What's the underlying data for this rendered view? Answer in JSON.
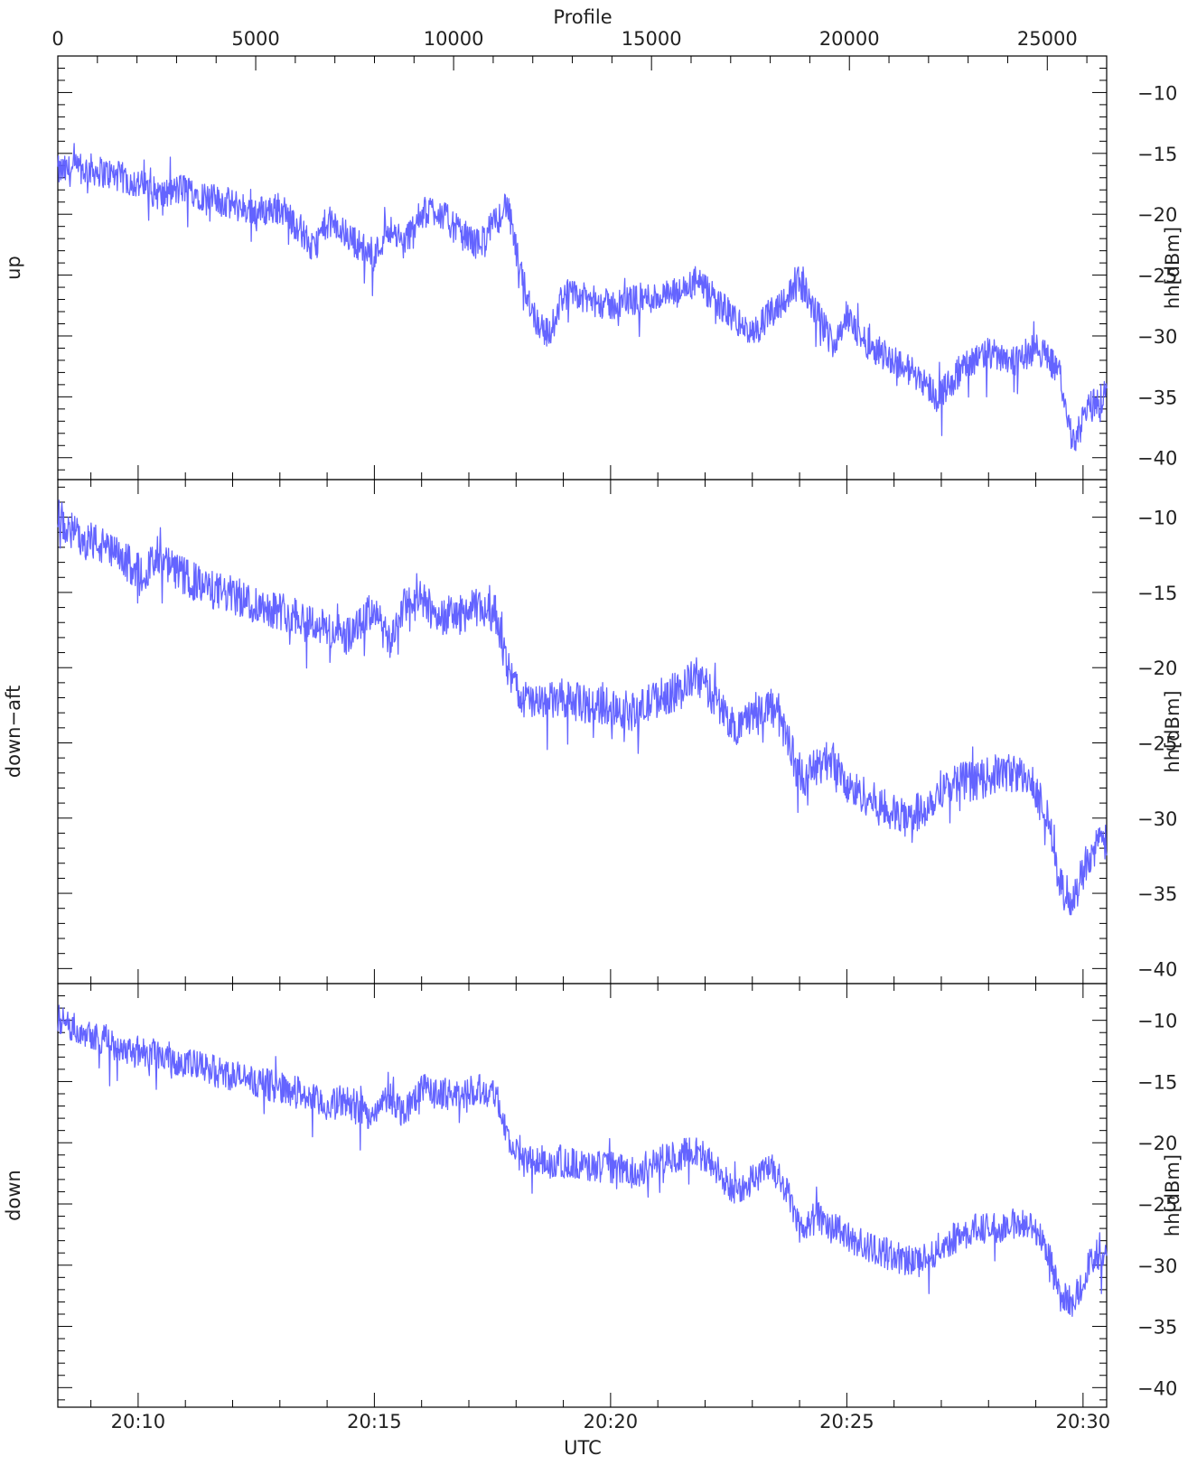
{
  "figure": {
    "top_axis_title": "Profile",
    "bottom_axis_title": "UTC",
    "top_ticks": [
      "0",
      "5000",
      "10000",
      "15000",
      "20000",
      "25000"
    ],
    "top_tick_values": [
      0,
      5000,
      10000,
      15000,
      20000,
      25000
    ],
    "bottom_ticks": [
      "20:10",
      "20:15",
      "20:20",
      "20:25",
      "20:30"
    ],
    "bottom_tick_minutes": [
      10,
      15,
      20,
      25,
      30
    ],
    "line_color": "#5c5cff",
    "frame_color": "#000000"
  },
  "chart_data": [
    {
      "type": "line",
      "panel_label": "up",
      "ylabel": "hh[dBm]",
      "yticks": [
        "−10",
        "−15",
        "−20",
        "−25",
        "−30",
        "−35",
        "−40"
      ],
      "ytick_values": [
        -10,
        -15,
        -20,
        -25,
        -30,
        -35,
        -40
      ],
      "ylim": [
        -41.8,
        -7.0
      ],
      "xlim": [
        8.3,
        30.5
      ],
      "x_unit": "minutes past 20:00 UTC",
      "x": [
        8.3,
        9.0,
        9.5,
        10.0,
        10.5,
        11.0,
        11.5,
        12.0,
        12.5,
        13.0,
        13.4,
        13.7,
        14.0,
        14.5,
        15.0,
        15.3,
        15.6,
        16.0,
        16.3,
        16.8,
        17.2,
        17.6,
        17.8,
        18.1,
        18.4,
        18.7,
        19.0,
        19.5,
        20.0,
        20.5,
        21.0,
        21.5,
        21.8,
        22.2,
        22.6,
        23.0,
        23.4,
        23.8,
        24.0,
        24.4,
        24.7,
        25.0,
        25.4,
        25.8,
        26.2,
        26.6,
        26.9,
        27.4,
        27.8,
        28.2,
        28.6,
        29.0,
        29.2,
        29.5,
        29.8,
        30.1,
        30.5
      ],
      "y": [
        -16.5,
        -16.3,
        -16.8,
        -17.5,
        -18.5,
        -17.8,
        -18.7,
        -19.2,
        -19.8,
        -19.5,
        -21.0,
        -23.0,
        -20.5,
        -22.0,
        -23.5,
        -21.0,
        -22.5,
        -20.0,
        -19.5,
        -21.5,
        -22.5,
        -20.5,
        -19.0,
        -25.0,
        -28.5,
        -30.0,
        -26.5,
        -27.0,
        -27.5,
        -27.0,
        -26.8,
        -26.5,
        -25.5,
        -27.0,
        -28.5,
        -30.0,
        -28.0,
        -26.5,
        -25.5,
        -28.5,
        -30.5,
        -28.5,
        -30.5,
        -31.5,
        -32.5,
        -33.5,
        -35.0,
        -33.0,
        -31.5,
        -31.5,
        -32.0,
        -31.0,
        -31.5,
        -33.0,
        -39.0,
        -36.0,
        -34.8
      ],
      "grid": false
    },
    {
      "type": "line",
      "panel_label": "down−aft",
      "ylabel": "hh[dBm]",
      "yticks": [
        "−10",
        "−15",
        "−20",
        "−25",
        "−30",
        "−35",
        "−40"
      ],
      "ytick_values": [
        -10,
        -15,
        -20,
        -25,
        -30,
        -35,
        -40
      ],
      "ylim": [
        -41.0,
        -7.5
      ],
      "xlim": [
        8.3,
        30.5
      ],
      "x_unit": "minutes past 20:00 UTC",
      "x": [
        8.3,
        8.6,
        9.0,
        9.5,
        10.0,
        10.5,
        11.0,
        11.5,
        12.0,
        12.5,
        13.0,
        13.4,
        13.7,
        14.0,
        14.5,
        15.0,
        15.3,
        15.6,
        16.0,
        16.3,
        16.8,
        17.2,
        17.6,
        17.8,
        18.1,
        18.5,
        19.0,
        19.5,
        20.0,
        20.5,
        21.0,
        21.5,
        21.8,
        22.2,
        22.6,
        23.0,
        23.4,
        23.8,
        24.0,
        24.4,
        24.7,
        25.0,
        25.4,
        25.8,
        26.2,
        26.6,
        27.0,
        27.4,
        27.8,
        28.2,
        28.6,
        29.0,
        29.3,
        29.5,
        29.8,
        30.1,
        30.5
      ],
      "y": [
        -10.0,
        -11.0,
        -11.5,
        -12.5,
        -13.5,
        -13.0,
        -14.0,
        -14.8,
        -15.2,
        -15.8,
        -16.2,
        -16.5,
        -17.0,
        -17.5,
        -18.0,
        -16.0,
        -18.5,
        -16.0,
        -15.5,
        -16.5,
        -16.5,
        -16.0,
        -16.5,
        -20.0,
        -22.0,
        -22.5,
        -22.0,
        -22.5,
        -22.5,
        -23.0,
        -22.0,
        -21.5,
        -20.5,
        -22.0,
        -24.0,
        -23.0,
        -22.5,
        -25.0,
        -27.5,
        -26.5,
        -26.0,
        -28.0,
        -28.5,
        -29.5,
        -30.0,
        -29.5,
        -28.0,
        -27.5,
        -27.5,
        -27.0,
        -27.0,
        -28.0,
        -30.5,
        -34.5,
        -35.5,
        -32.5,
        -31.5
      ],
      "grid": false
    },
    {
      "type": "line",
      "panel_label": "down",
      "ylabel": "hh[dBm]",
      "yticks": [
        "−10",
        "−15",
        "−20",
        "−25",
        "−30",
        "−35",
        "−40"
      ],
      "ytick_values": [
        -10,
        -15,
        -20,
        -25,
        -30,
        -35,
        -40
      ],
      "ylim": [
        -41.6,
        -7.0
      ],
      "xlim": [
        8.3,
        30.5
      ],
      "x_unit": "minutes past 20:00 UTC",
      "x": [
        8.3,
        8.6,
        9.0,
        9.5,
        10.0,
        10.5,
        11.0,
        11.5,
        12.0,
        12.5,
        13.0,
        13.4,
        13.7,
        14.0,
        14.5,
        15.0,
        15.3,
        15.6,
        16.0,
        16.3,
        16.8,
        17.2,
        17.6,
        17.8,
        18.1,
        18.5,
        19.0,
        19.5,
        20.0,
        20.5,
        21.0,
        21.5,
        21.8,
        22.2,
        22.6,
        23.0,
        23.4,
        23.8,
        24.0,
        24.4,
        24.7,
        25.0,
        25.4,
        25.8,
        26.2,
        26.6,
        27.0,
        27.4,
        27.8,
        28.2,
        28.6,
        29.0,
        29.3,
        29.5,
        29.8,
        30.1,
        30.5
      ],
      "y": [
        -10.0,
        -10.5,
        -11.0,
        -12.0,
        -12.5,
        -12.8,
        -13.5,
        -14.0,
        -14.5,
        -15.0,
        -15.5,
        -15.8,
        -16.5,
        -17.0,
        -16.5,
        -18.0,
        -16.0,
        -17.5,
        -15.5,
        -16.0,
        -16.0,
        -15.5,
        -16.0,
        -19.5,
        -21.5,
        -21.5,
        -21.5,
        -22.0,
        -22.0,
        -22.5,
        -21.5,
        -21.0,
        -20.5,
        -22.0,
        -24.0,
        -23.0,
        -22.0,
        -24.5,
        -27.0,
        -26.0,
        -27.0,
        -27.5,
        -28.5,
        -29.0,
        -29.5,
        -29.5,
        -28.5,
        -27.5,
        -27.0,
        -27.0,
        -26.5,
        -27.0,
        -29.5,
        -32.5,
        -33.0,
        -30.0,
        -29.5
      ],
      "grid": false
    }
  ]
}
